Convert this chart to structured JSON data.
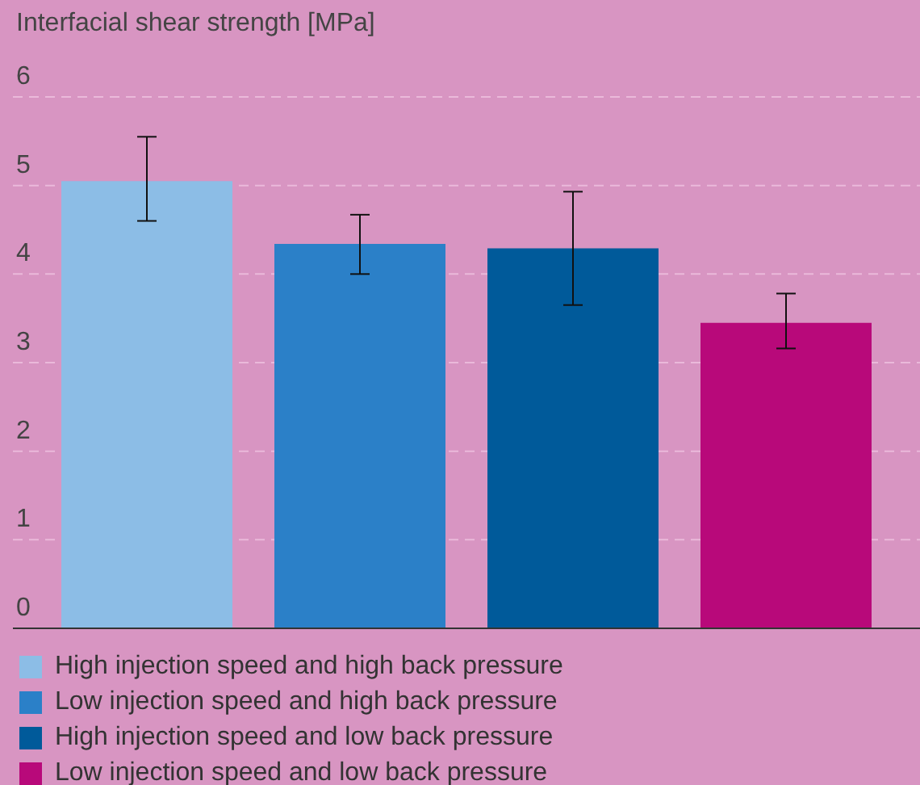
{
  "chart_data": {
    "type": "bar",
    "ylabel": "Interfacial shear strength [MPa]",
    "categories": [
      null
    ],
    "series": [
      {
        "name": "High injection speed and high back pressure",
        "color": "#8cbde6",
        "values": [
          5.05
        ],
        "errors": [
          [
            4.6,
            5.55
          ]
        ]
      },
      {
        "name": "Low injection speed and high back pressure",
        "color": "#2b80c8",
        "values": [
          4.34
        ],
        "errors": [
          [
            4.0,
            4.67
          ]
        ]
      },
      {
        "name": "High injection speed and low back pressure",
        "color": "#005a9a",
        "values": [
          4.29
        ],
        "errors": [
          [
            3.65,
            4.93
          ]
        ]
      },
      {
        "name": "Low injection speed and low back pressure",
        "color": "#b8097a",
        "values": [
          3.45
        ],
        "errors": [
          [
            3.16,
            3.78
          ]
        ]
      }
    ],
    "ylim": [
      0,
      6
    ],
    "yticks": [
      0,
      1,
      2,
      3,
      4,
      5,
      6
    ],
    "grid": "y",
    "legend": "bottom"
  }
}
